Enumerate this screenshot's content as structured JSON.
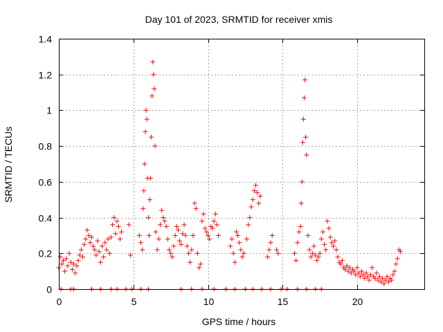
{
  "chart_data": {
    "type": "scatter",
    "title": "Day 101 of 2023, SRMTID for receiver xmis",
    "xlabel": "GPS time / hours",
    "ylabel": "SRMTID / TECUs",
    "xlim": [
      0,
      24.5
    ],
    "ylim": [
      0,
      1.4
    ],
    "xticks": [
      0,
      5,
      10,
      15,
      20
    ],
    "xtick_labels": [
      "0",
      "5",
      "10",
      "15",
      "20"
    ],
    "yticks": [
      0,
      0.2,
      0.4,
      0.6,
      0.8,
      1.0,
      1.2,
      1.4
    ],
    "ytick_labels": [
      "0",
      "0.2",
      "0.4",
      "0.6",
      "0.8",
      "1",
      "1.2",
      "1.4"
    ],
    "grid": true,
    "marker": "plus",
    "color": "#ff0000",
    "series": [
      {
        "name": "SRMTID",
        "points": [
          [
            0.0,
            0.12
          ],
          [
            0.1,
            0.18
          ],
          [
            0.2,
            0.14
          ],
          [
            0.3,
            0.16
          ],
          [
            0.4,
            0.1
          ],
          [
            0.5,
            0.17
          ],
          [
            0.6,
            0.13
          ],
          [
            0.7,
            0.2
          ],
          [
            0.8,
            0.15
          ],
          [
            0.9,
            0.11
          ],
          [
            1.0,
            0.14
          ],
          [
            1.1,
            0.09
          ],
          [
            1.2,
            0.13
          ],
          [
            1.3,
            0.16
          ],
          [
            1.4,
            0.19
          ],
          [
            1.5,
            0.22
          ],
          [
            1.6,
            0.18
          ],
          [
            1.7,
            0.25
          ],
          [
            1.8,
            0.28
          ],
          [
            1.9,
            0.33
          ],
          [
            2.0,
            0.3
          ],
          [
            2.1,
            0.26
          ],
          [
            2.2,
            0.29
          ],
          [
            2.3,
            0.24
          ],
          [
            2.4,
            0.22
          ],
          [
            2.5,
            0.19
          ],
          [
            2.6,
            0.27
          ],
          [
            2.7,
            0.21
          ],
          [
            2.8,
            0.15
          ],
          [
            2.9,
            0.24
          ],
          [
            3.0,
            0.18
          ],
          [
            3.1,
            0.26
          ],
          [
            3.2,
            0.22
          ],
          [
            3.3,
            0.28
          ],
          [
            3.4,
            0.2
          ],
          [
            3.5,
            0.29
          ],
          [
            3.6,
            0.36
          ],
          [
            3.7,
            0.4
          ],
          [
            3.8,
            0.31
          ],
          [
            3.9,
            0.38
          ],
          [
            4.0,
            0.35
          ],
          [
            4.1,
            0.28
          ],
          [
            4.2,
            0.32
          ],
          [
            4.7,
            0.36
          ],
          [
            4.8,
            0.19
          ],
          [
            5.4,
            0.3
          ],
          [
            5.5,
            0.26
          ],
          [
            5.6,
            0.22
          ],
          [
            5.65,
            0.45
          ],
          [
            5.7,
            0.55
          ],
          [
            5.75,
            0.7
          ],
          [
            5.8,
            0.88
          ],
          [
            5.85,
            1.0
          ],
          [
            5.9,
            0.95
          ],
          [
            5.95,
            0.62
          ],
          [
            6.0,
            0.4
          ],
          [
            6.05,
            0.3
          ],
          [
            6.1,
            0.5
          ],
          [
            6.15,
            0.62
          ],
          [
            6.2,
            0.85
          ],
          [
            6.25,
            1.08
          ],
          [
            6.3,
            1.27
          ],
          [
            6.35,
            1.2
          ],
          [
            6.4,
            1.12
          ],
          [
            6.45,
            0.8
          ],
          [
            6.5,
            0.32
          ],
          [
            6.6,
            0.22
          ],
          [
            6.7,
            0.28
          ],
          [
            6.8,
            0.36
          ],
          [
            6.9,
            0.44
          ],
          [
            7.0,
            0.4
          ],
          [
            7.1,
            0.38
          ],
          [
            7.2,
            0.35
          ],
          [
            7.3,
            0.28
          ],
          [
            7.4,
            0.22
          ],
          [
            7.5,
            0.2
          ],
          [
            7.6,
            0.18
          ],
          [
            7.7,
            0.24
          ],
          [
            7.8,
            0.3
          ],
          [
            7.9,
            0.35
          ],
          [
            8.0,
            0.33
          ],
          [
            8.1,
            0.27
          ],
          [
            8.2,
            0.25
          ],
          [
            8.3,
            0.31
          ],
          [
            8.4,
            0.36
          ],
          [
            8.5,
            0.3
          ],
          [
            8.6,
            0.24
          ],
          [
            8.7,
            0.2
          ],
          [
            8.8,
            0.15
          ],
          [
            8.9,
            0.22
          ],
          [
            9.0,
            0.3
          ],
          [
            9.1,
            0.48
          ],
          [
            9.2,
            0.45
          ],
          [
            9.3,
            0.2
          ],
          [
            9.4,
            0.12
          ],
          [
            9.5,
            0.14
          ],
          [
            9.6,
            0.38
          ],
          [
            9.7,
            0.42
          ],
          [
            9.8,
            0.34
          ],
          [
            9.9,
            0.32
          ],
          [
            10.0,
            0.3
          ],
          [
            10.1,
            0.28
          ],
          [
            10.2,
            0.35
          ],
          [
            10.3,
            0.34
          ],
          [
            10.4,
            0.38
          ],
          [
            10.5,
            0.42
          ],
          [
            10.6,
            0.36
          ],
          [
            10.7,
            0.3
          ],
          [
            11.5,
            0.24
          ],
          [
            11.6,
            0.28
          ],
          [
            11.7,
            0.2
          ],
          [
            11.8,
            0.15
          ],
          [
            11.9,
            0.32
          ],
          [
            12.0,
            0.3
          ],
          [
            12.1,
            0.26
          ],
          [
            12.2,
            0.22
          ],
          [
            12.3,
            0.18
          ],
          [
            12.4,
            0.2
          ],
          [
            12.6,
            0.28
          ],
          [
            12.7,
            0.36
          ],
          [
            12.8,
            0.4
          ],
          [
            12.9,
            0.46
          ],
          [
            13.0,
            0.5
          ],
          [
            13.1,
            0.55
          ],
          [
            13.2,
            0.58
          ],
          [
            13.3,
            0.54
          ],
          [
            13.4,
            0.48
          ],
          [
            13.5,
            0.52
          ],
          [
            14.0,
            0.18
          ],
          [
            14.1,
            0.22
          ],
          [
            14.2,
            0.26
          ],
          [
            14.3,
            0.3
          ],
          [
            14.6,
            0.22
          ],
          [
            14.7,
            0.2
          ],
          [
            15.8,
            0.2
          ],
          [
            15.9,
            0.16
          ],
          [
            16.0,
            0.26
          ],
          [
            16.1,
            0.32
          ],
          [
            16.2,
            0.35
          ],
          [
            16.25,
            0.48
          ],
          [
            16.3,
            0.6
          ],
          [
            16.35,
            0.82
          ],
          [
            16.4,
            0.95
          ],
          [
            16.45,
            1.07
          ],
          [
            16.5,
            1.17
          ],
          [
            16.55,
            0.85
          ],
          [
            16.6,
            0.75
          ],
          [
            16.7,
            0.3
          ],
          [
            16.8,
            0.22
          ],
          [
            16.9,
            0.18
          ],
          [
            17.0,
            0.2
          ],
          [
            17.1,
            0.24
          ],
          [
            17.2,
            0.19
          ],
          [
            17.3,
            0.16
          ],
          [
            17.4,
            0.18
          ],
          [
            17.5,
            0.2
          ],
          [
            17.6,
            0.28
          ],
          [
            17.7,
            0.32
          ],
          [
            17.8,
            0.25
          ],
          [
            17.9,
            0.22
          ],
          [
            18.0,
            0.38
          ],
          [
            18.1,
            0.34
          ],
          [
            18.2,
            0.29
          ],
          [
            18.3,
            0.26
          ],
          [
            18.4,
            0.24
          ],
          [
            18.5,
            0.27
          ],
          [
            18.6,
            0.22
          ],
          [
            18.7,
            0.18
          ],
          [
            18.8,
            0.15
          ],
          [
            18.9,
            0.14
          ],
          [
            19.0,
            0.16
          ],
          [
            19.1,
            0.12
          ],
          [
            19.2,
            0.11
          ],
          [
            19.3,
            0.13
          ],
          [
            19.4,
            0.1
          ],
          [
            19.5,
            0.12
          ],
          [
            19.6,
            0.09
          ],
          [
            19.7,
            0.11
          ],
          [
            19.8,
            0.1
          ],
          [
            19.9,
            0.08
          ],
          [
            20.0,
            0.12
          ],
          [
            20.1,
            0.09
          ],
          [
            20.2,
            0.07
          ],
          [
            20.3,
            0.1
          ],
          [
            20.4,
            0.08
          ],
          [
            20.5,
            0.06
          ],
          [
            20.6,
            0.09
          ],
          [
            20.7,
            0.07
          ],
          [
            20.8,
            0.05
          ],
          [
            20.9,
            0.08
          ],
          [
            21.0,
            0.12
          ],
          [
            21.1,
            0.07
          ],
          [
            21.2,
            0.06
          ],
          [
            21.3,
            0.09
          ],
          [
            21.4,
            0.05
          ],
          [
            21.5,
            0.07
          ],
          [
            21.6,
            0.04
          ],
          [
            21.7,
            0.06
          ],
          [
            21.8,
            0.03
          ],
          [
            21.9,
            0.05
          ],
          [
            22.0,
            0.07
          ],
          [
            22.1,
            0.04
          ],
          [
            22.2,
            0.06
          ],
          [
            22.3,
            0.05
          ],
          [
            22.4,
            0.08
          ],
          [
            22.5,
            0.1
          ],
          [
            22.6,
            0.14
          ],
          [
            22.7,
            0.17
          ],
          [
            22.8,
            0.22
          ],
          [
            22.9,
            0.21
          ],
          [
            0.15,
            0.0
          ],
          [
            0.8,
            0.0
          ],
          [
            1.0,
            0.0
          ],
          [
            2.2,
            0.0
          ],
          [
            2.8,
            0.0
          ],
          [
            3.5,
            0.0
          ],
          [
            3.9,
            0.0
          ],
          [
            4.5,
            0.0
          ],
          [
            4.9,
            0.0
          ],
          [
            5.5,
            0.0
          ],
          [
            6.0,
            0.0
          ],
          [
            8.2,
            0.0
          ],
          [
            8.9,
            0.0
          ],
          [
            9.6,
            0.0
          ],
          [
            10.4,
            0.0
          ],
          [
            11.2,
            0.0
          ],
          [
            11.8,
            0.0
          ],
          [
            12.5,
            0.0
          ],
          [
            13.0,
            0.0
          ],
          [
            13.6,
            0.0
          ],
          [
            14.2,
            0.0
          ],
          [
            14.9,
            0.0
          ],
          [
            15.3,
            0.0
          ],
          [
            16.0,
            0.0
          ],
          [
            16.6,
            0.0
          ],
          [
            17.2,
            0.0
          ],
          [
            17.6,
            0.0
          ]
        ]
      }
    ]
  }
}
